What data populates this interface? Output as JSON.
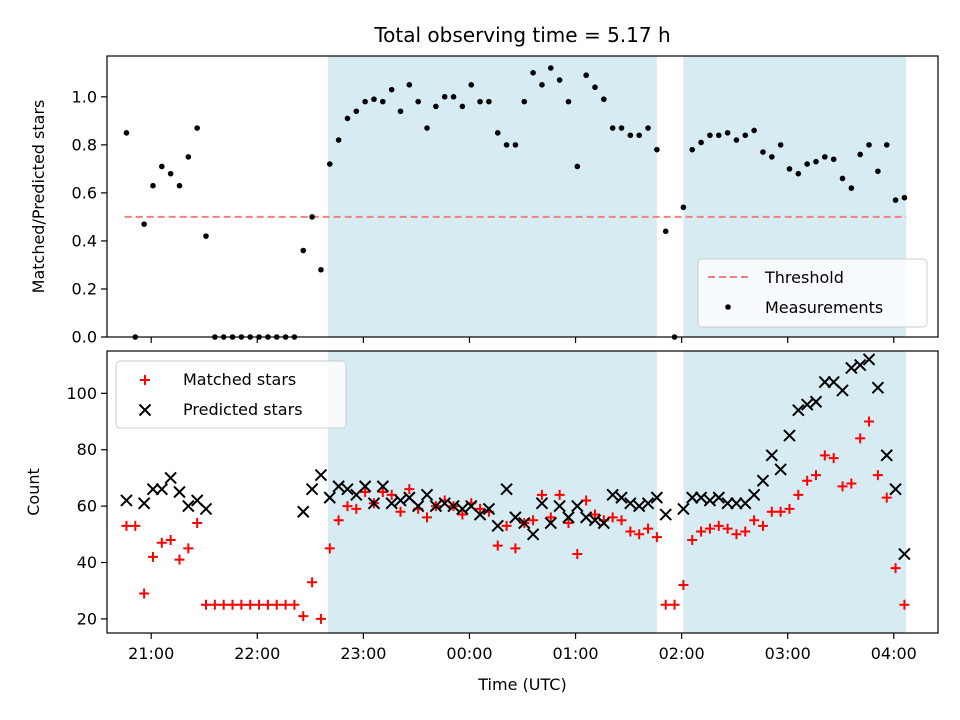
{
  "chart_data": [
    {
      "type": "scatter",
      "title": "Total observing time = 5.17 h",
      "xlabel": "",
      "ylabel": "Matched/Predicted stars",
      "xlim": [
        "20:35",
        "04:25"
      ],
      "ylim": [
        0.0,
        1.17
      ],
      "yticks": [
        "0.0",
        "0.2",
        "0.4",
        "0.6",
        "0.8",
        "1.0"
      ],
      "grid": false,
      "legend_placement": "lower right",
      "shaded_intervals": [
        [
          "22:40",
          "01:46"
        ],
        [
          "02:01",
          "04:07"
        ]
      ],
      "shade_color": "#add8e6",
      "series": [
        {
          "name": "Threshold",
          "kind": "dashed-line",
          "color": "#f08080",
          "x": [
            "20:45",
            "04:07"
          ],
          "y": [
            0.5,
            0.5
          ]
        },
        {
          "name": "Measurements",
          "kind": "dots",
          "color": "#000000",
          "points": [
            [
              "20:46",
              0.85
            ],
            [
              "20:51",
              0.0
            ],
            [
              "20:56",
              0.47
            ],
            [
              "21:01",
              0.63
            ],
            [
              "21:06",
              0.71
            ],
            [
              "21:11",
              0.68
            ],
            [
              "21:16",
              0.63
            ],
            [
              "21:21",
              0.75
            ],
            [
              "21:26",
              0.87
            ],
            [
              "21:31",
              0.42
            ],
            [
              "21:36",
              0.0
            ],
            [
              "21:41",
              0.0
            ],
            [
              "21:46",
              0.0
            ],
            [
              "21:51",
              0.0
            ],
            [
              "21:56",
              0.0
            ],
            [
              "22:01",
              0.0
            ],
            [
              "22:06",
              0.0
            ],
            [
              "22:11",
              0.0
            ],
            [
              "22:16",
              0.0
            ],
            [
              "22:21",
              0.0
            ],
            [
              "22:26",
              0.36
            ],
            [
              "22:31",
              0.5
            ],
            [
              "22:36",
              0.28
            ],
            [
              "22:41",
              0.72
            ],
            [
              "22:46",
              0.82
            ],
            [
              "22:51",
              0.91
            ],
            [
              "22:56",
              0.94
            ],
            [
              "23:01",
              0.98
            ],
            [
              "23:06",
              0.99
            ],
            [
              "23:11",
              0.98
            ],
            [
              "23:16",
              1.03
            ],
            [
              "23:21",
              0.94
            ],
            [
              "23:26",
              1.05
            ],
            [
              "23:31",
              0.98
            ],
            [
              "23:36",
              0.87
            ],
            [
              "23:41",
              0.96
            ],
            [
              "23:46",
              1.0
            ],
            [
              "23:51",
              1.0
            ],
            [
              "23:56",
              0.96
            ],
            [
              "00:01",
              1.05
            ],
            [
              "00:06",
              0.98
            ],
            [
              "00:11",
              0.98
            ],
            [
              "00:16",
              0.85
            ],
            [
              "00:21",
              0.8
            ],
            [
              "00:26",
              0.8
            ],
            [
              "00:31",
              0.98
            ],
            [
              "00:36",
              1.1
            ],
            [
              "00:41",
              1.05
            ],
            [
              "00:46",
              1.12
            ],
            [
              "00:51",
              1.07
            ],
            [
              "00:56",
              0.98
            ],
            [
              "01:01",
              0.71
            ],
            [
              "01:06",
              1.09
            ],
            [
              "01:11",
              1.04
            ],
            [
              "01:16",
              0.99
            ],
            [
              "01:21",
              0.87
            ],
            [
              "01:26",
              0.87
            ],
            [
              "01:31",
              0.84
            ],
            [
              "01:36",
              0.84
            ],
            [
              "01:41",
              0.87
            ],
            [
              "01:46",
              0.78
            ],
            [
              "01:51",
              0.44
            ],
            [
              "01:56",
              0.0
            ],
            [
              "02:01",
              0.54
            ],
            [
              "02:06",
              0.78
            ],
            [
              "02:11",
              0.81
            ],
            [
              "02:16",
              0.84
            ],
            [
              "02:21",
              0.84
            ],
            [
              "02:26",
              0.85
            ],
            [
              "02:31",
              0.82
            ],
            [
              "02:36",
              0.84
            ],
            [
              "02:41",
              0.86
            ],
            [
              "02:46",
              0.77
            ],
            [
              "02:51",
              0.75
            ],
            [
              "02:56",
              0.8
            ],
            [
              "03:01",
              0.7
            ],
            [
              "03:06",
              0.68
            ],
            [
              "03:11",
              0.72
            ],
            [
              "03:16",
              0.73
            ],
            [
              "03:21",
              0.75
            ],
            [
              "03:26",
              0.74
            ],
            [
              "03:31",
              0.66
            ],
            [
              "03:36",
              0.62
            ],
            [
              "03:41",
              0.76
            ],
            [
              "03:46",
              0.8
            ],
            [
              "03:51",
              0.69
            ],
            [
              "03:56",
              0.8
            ],
            [
              "04:01",
              0.57
            ],
            [
              "04:06",
              0.58
            ]
          ]
        }
      ]
    },
    {
      "type": "scatter",
      "title": "",
      "xlabel": "Time (UTC)",
      "ylabel": "Count",
      "xlim": [
        "20:35",
        "04:25"
      ],
      "xticks": [
        "21:00",
        "22:00",
        "23:00",
        "00:00",
        "01:00",
        "02:00",
        "03:00",
        "04:00"
      ],
      "ylim": [
        15,
        115
      ],
      "yticks": [
        "20",
        "40",
        "60",
        "80",
        "100"
      ],
      "grid": false,
      "legend_placement": "upper left",
      "shaded_intervals": [
        [
          "22:40",
          "01:46"
        ],
        [
          "02:01",
          "04:07"
        ]
      ],
      "shade_color": "#add8e6",
      "series": [
        {
          "name": "Matched stars",
          "marker": "plus",
          "color": "#ff0000",
          "points": [
            [
              "20:46",
              53
            ],
            [
              "20:51",
              53
            ],
            [
              "20:56",
              29
            ],
            [
              "21:01",
              42
            ],
            [
              "21:06",
              47
            ],
            [
              "21:11",
              48
            ],
            [
              "21:16",
              41
            ],
            [
              "21:21",
              45
            ],
            [
              "21:26",
              54
            ],
            [
              "21:31",
              25
            ],
            [
              "21:36",
              25
            ],
            [
              "21:41",
              25
            ],
            [
              "21:46",
              25
            ],
            [
              "21:51",
              25
            ],
            [
              "21:56",
              25
            ],
            [
              "22:01",
              25
            ],
            [
              "22:06",
              25
            ],
            [
              "22:11",
              25
            ],
            [
              "22:16",
              25
            ],
            [
              "22:21",
              25
            ],
            [
              "22:26",
              21
            ],
            [
              "22:31",
              33
            ],
            [
              "22:36",
              20
            ],
            [
              "22:41",
              45
            ],
            [
              "22:46",
              55
            ],
            [
              "22:51",
              60
            ],
            [
              "22:56",
              59
            ],
            [
              "23:01",
              65
            ],
            [
              "23:06",
              61
            ],
            [
              "23:11",
              65
            ],
            [
              "23:16",
              64
            ],
            [
              "23:21",
              58
            ],
            [
              "23:26",
              66
            ],
            [
              "23:31",
              59
            ],
            [
              "23:36",
              56
            ],
            [
              "23:41",
              60
            ],
            [
              "23:46",
              62
            ],
            [
              "23:51",
              60
            ],
            [
              "23:56",
              57
            ],
            [
              "00:01",
              61
            ],
            [
              "00:06",
              59
            ],
            [
              "00:11",
              58
            ],
            [
              "00:16",
              46
            ],
            [
              "00:21",
              53
            ],
            [
              "00:26",
              45
            ],
            [
              "00:31",
              54
            ],
            [
              "00:36",
              55
            ],
            [
              "00:41",
              64
            ],
            [
              "00:46",
              56
            ],
            [
              "00:51",
              64
            ],
            [
              "00:56",
              54
            ],
            [
              "01:01",
              43
            ],
            [
              "01:06",
              62
            ],
            [
              "01:11",
              57
            ],
            [
              "01:16",
              55
            ],
            [
              "01:21",
              56
            ],
            [
              "01:26",
              55
            ],
            [
              "01:31",
              51
            ],
            [
              "01:36",
              50
            ],
            [
              "01:41",
              52
            ],
            [
              "01:46",
              49
            ],
            [
              "01:51",
              25
            ],
            [
              "01:56",
              25
            ],
            [
              "02:01",
              32
            ],
            [
              "02:06",
              48
            ],
            [
              "02:11",
              51
            ],
            [
              "02:16",
              52
            ],
            [
              "02:21",
              53
            ],
            [
              "02:26",
              52
            ],
            [
              "02:31",
              50
            ],
            [
              "02:36",
              51
            ],
            [
              "02:41",
              55
            ],
            [
              "02:46",
              53
            ],
            [
              "02:51",
              58
            ],
            [
              "02:56",
              58
            ],
            [
              "03:01",
              59
            ],
            [
              "03:06",
              64
            ],
            [
              "03:11",
              69
            ],
            [
              "03:16",
              71
            ],
            [
              "03:21",
              78
            ],
            [
              "03:26",
              77
            ],
            [
              "03:31",
              67
            ],
            [
              "03:36",
              68
            ],
            [
              "03:41",
              84
            ],
            [
              "03:46",
              90
            ],
            [
              "03:51",
              71
            ],
            [
              "03:56",
              63
            ],
            [
              "04:01",
              38
            ],
            [
              "04:06",
              25
            ]
          ]
        },
        {
          "name": "Predicted stars",
          "marker": "x",
          "color": "#000000",
          "points": [
            [
              "20:46",
              62
            ],
            [
              "20:56",
              61
            ],
            [
              "21:01",
              66
            ],
            [
              "21:06",
              66
            ],
            [
              "21:11",
              70
            ],
            [
              "21:16",
              65
            ],
            [
              "21:21",
              60
            ],
            [
              "21:26",
              62
            ],
            [
              "21:31",
              59
            ],
            [
              "22:26",
              58
            ],
            [
              "22:31",
              66
            ],
            [
              "22:36",
              71
            ],
            [
              "22:41",
              63
            ],
            [
              "22:46",
              67
            ],
            [
              "22:51",
              66
            ],
            [
              "22:56",
              64
            ],
            [
              "23:01",
              67
            ],
            [
              "23:06",
              61
            ],
            [
              "23:11",
              67
            ],
            [
              "23:16",
              61
            ],
            [
              "23:21",
              62
            ],
            [
              "23:26",
              63
            ],
            [
              "23:31",
              60
            ],
            [
              "23:36",
              64
            ],
            [
              "23:41",
              60
            ],
            [
              "23:46",
              61
            ],
            [
              "23:51",
              60
            ],
            [
              "23:56",
              59
            ],
            [
              "00:01",
              60
            ],
            [
              "00:06",
              57
            ],
            [
              "00:11",
              59
            ],
            [
              "00:16",
              53
            ],
            [
              "00:21",
              66
            ],
            [
              "00:26",
              56
            ],
            [
              "00:31",
              54
            ],
            [
              "00:36",
              50
            ],
            [
              "00:41",
              61
            ],
            [
              "00:46",
              54
            ],
            [
              "00:51",
              60
            ],
            [
              "00:56",
              56
            ],
            [
              "01:01",
              60
            ],
            [
              "01:06",
              56
            ],
            [
              "01:11",
              55
            ],
            [
              "01:16",
              54
            ],
            [
              "01:21",
              64
            ],
            [
              "01:26",
              63
            ],
            [
              "01:31",
              61
            ],
            [
              "01:36",
              60
            ],
            [
              "01:41",
              61
            ],
            [
              "01:46",
              63
            ],
            [
              "01:51",
              57
            ],
            [
              "02:01",
              59
            ],
            [
              "02:06",
              63
            ],
            [
              "02:11",
              63
            ],
            [
              "02:16",
              62
            ],
            [
              "02:21",
              63
            ],
            [
              "02:26",
              61
            ],
            [
              "02:31",
              61
            ],
            [
              "02:36",
              61
            ],
            [
              "02:41",
              64
            ],
            [
              "02:46",
              69
            ],
            [
              "02:51",
              78
            ],
            [
              "02:56",
              73
            ],
            [
              "03:01",
              85
            ],
            [
              "03:06",
              94
            ],
            [
              "03:11",
              96
            ],
            [
              "03:16",
              97
            ],
            [
              "03:21",
              104
            ],
            [
              "03:26",
              104
            ],
            [
              "03:31",
              101
            ],
            [
              "03:36",
              109
            ],
            [
              "03:41",
              110
            ],
            [
              "03:46",
              112
            ],
            [
              "03:51",
              102
            ],
            [
              "03:56",
              78
            ],
            [
              "04:01",
              66
            ],
            [
              "04:06",
              43
            ]
          ]
        }
      ]
    }
  ]
}
